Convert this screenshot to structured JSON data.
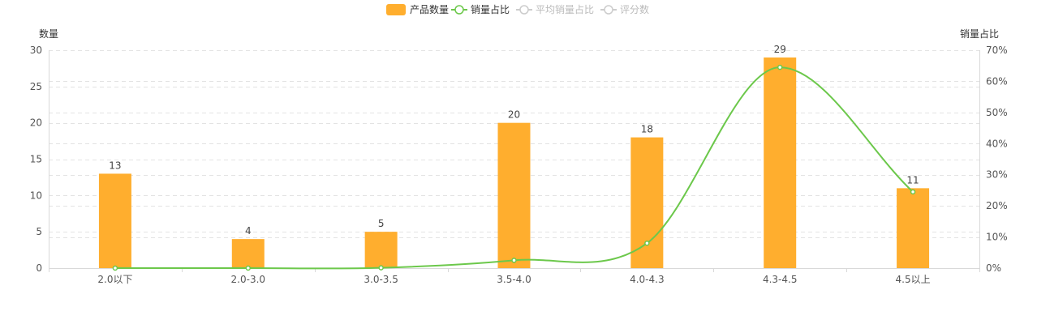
{
  "colors": {
    "bar": "#FFAE2E",
    "line": "#6CC84B",
    "inactive": "#CCCCCC",
    "axis": "#D9D9D9",
    "grid": "#E3E3E3"
  },
  "legend": {
    "items": [
      {
        "label": "产品数量",
        "active": true,
        "icon": "bar-swatch"
      },
      {
        "label": "销量占比",
        "active": true,
        "icon": "line-circle"
      },
      {
        "label": "平均销量占比",
        "active": false,
        "icon": "line-circle"
      },
      {
        "label": "评分数",
        "active": false,
        "icon": "line-circle"
      }
    ]
  },
  "chart_data": {
    "type": "bar",
    "categories": [
      "2.0以下",
      "2.0-3.0",
      "3.0-3.5",
      "3.5-4.0",
      "4.0-4.3",
      "4.3-4.5",
      "4.5以上"
    ],
    "left_axis": {
      "label": "数量",
      "min": 0,
      "max": 30,
      "ticks": [
        0,
        5,
        10,
        15,
        20,
        25,
        30
      ]
    },
    "right_axis": {
      "label": "销量占比",
      "min": 0,
      "max": 70,
      "ticks": [
        "0%",
        "10%",
        "20%",
        "30%",
        "40%",
        "50%",
        "60%",
        "70%"
      ]
    },
    "grid": true,
    "series": [
      {
        "name": "产品数量",
        "type": "bar",
        "axis": "left",
        "values": [
          13,
          4,
          5,
          20,
          18,
          29,
          11
        ],
        "labels": [
          "13",
          "4",
          "5",
          "20",
          "18",
          "29",
          "11"
        ]
      },
      {
        "name": "销量占比",
        "type": "line",
        "axis": "right",
        "smooth": true,
        "values": [
          0,
          0,
          0.1,
          2.5,
          8,
          64.5,
          24.5
        ]
      }
    ]
  }
}
